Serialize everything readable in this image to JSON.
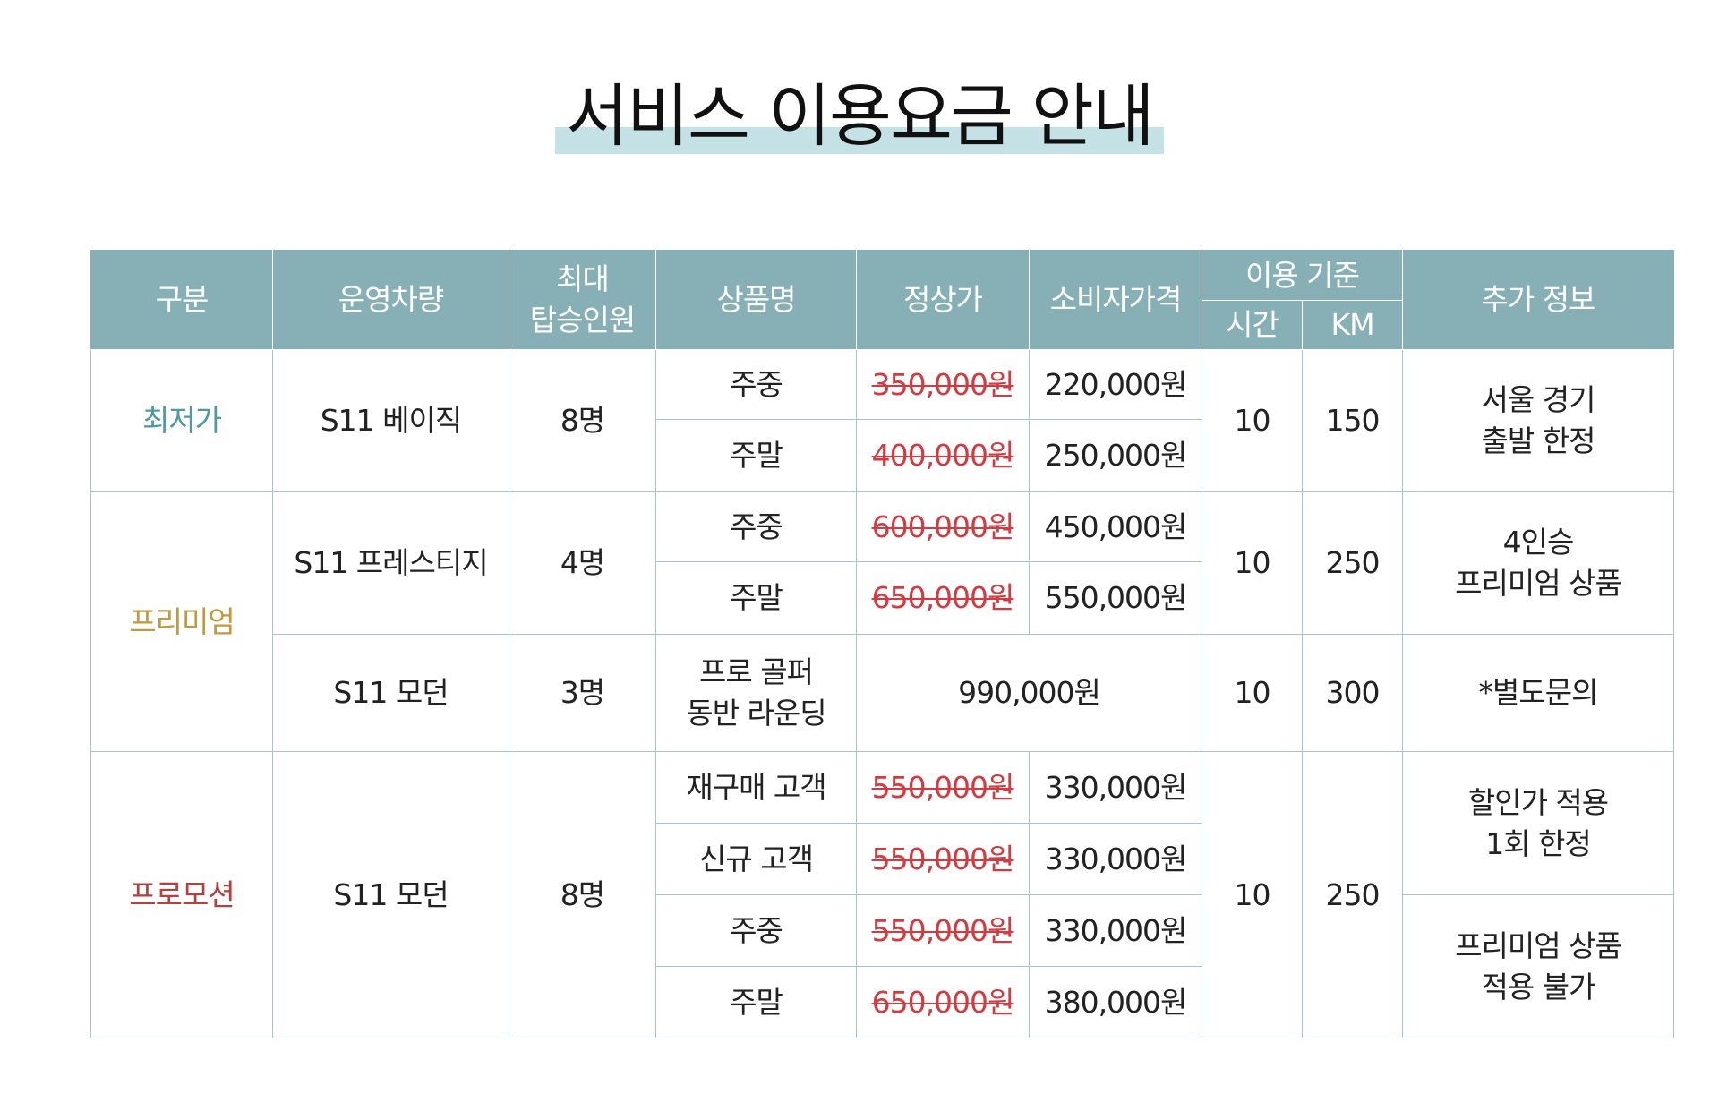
{
  "title": "서비스 이용요금 안내",
  "colors": {
    "accent_highlight": "#c4e1e6",
    "header_bg": "#86b0b6",
    "border": "#a6c6cb",
    "strike": "#d43a3f",
    "cat_lowest": "#4d9aa0",
    "cat_premium": "#c19a3f",
    "cat_promotion": "#b5403e"
  },
  "headers": {
    "category": "구분",
    "vehicle": "운영차량",
    "max_passengers_1": "최대",
    "max_passengers_2": "탑승인원",
    "product": "상품명",
    "regular_price": "정상가",
    "consumer_price": "소비자가격",
    "usage_basis": "이용 기준",
    "hours": "시간",
    "km": "KM",
    "extra_info": "추가 정보"
  },
  "rows": {
    "lowest": {
      "category": "최저가",
      "vehicle": "S11 베이직",
      "passengers": "8명",
      "items": [
        {
          "product": "주중",
          "regular": "350,000원",
          "consumer": "220,000원"
        },
        {
          "product": "주말",
          "regular": "400,000원",
          "consumer": "250,000원"
        }
      ],
      "hours": "10",
      "km": "150",
      "info_1": "서울 경기",
      "info_2": "출발 한정"
    },
    "premium": {
      "category": "프리미엄",
      "prestige": {
        "vehicle": "S11 프레스티지",
        "passengers": "4명",
        "items": [
          {
            "product": "주중",
            "regular": "600,000원",
            "consumer": "450,000원"
          },
          {
            "product": "주말",
            "regular": "650,000원",
            "consumer": "550,000원"
          }
        ],
        "hours": "10",
        "km": "250",
        "info_1": "4인승",
        "info_2": "프리미엄 상품"
      },
      "modern": {
        "vehicle": "S11 모던",
        "passengers": "3명",
        "product_1": "프로 골퍼",
        "product_2": "동반 라운딩",
        "price": "990,000원",
        "hours": "10",
        "km": "300",
        "info": "*별도문의"
      }
    },
    "promotion": {
      "category": "프로모션",
      "vehicle": "S11 모던",
      "passengers": "8명",
      "items": [
        {
          "product": "재구매 고객",
          "regular": "550,000원",
          "consumer": "330,000원"
        },
        {
          "product": "신규 고객",
          "regular": "550,000원",
          "consumer": "330,000원"
        },
        {
          "product": "주중",
          "regular": "550,000원",
          "consumer": "330,000원"
        },
        {
          "product": "주말",
          "regular": "650,000원",
          "consumer": "380,000원"
        }
      ],
      "hours": "10",
      "km": "250",
      "info_a_1": "할인가 적용",
      "info_a_2": "1회 한정",
      "info_b_1": "프리미엄 상품",
      "info_b_2": "적용 불가"
    }
  }
}
